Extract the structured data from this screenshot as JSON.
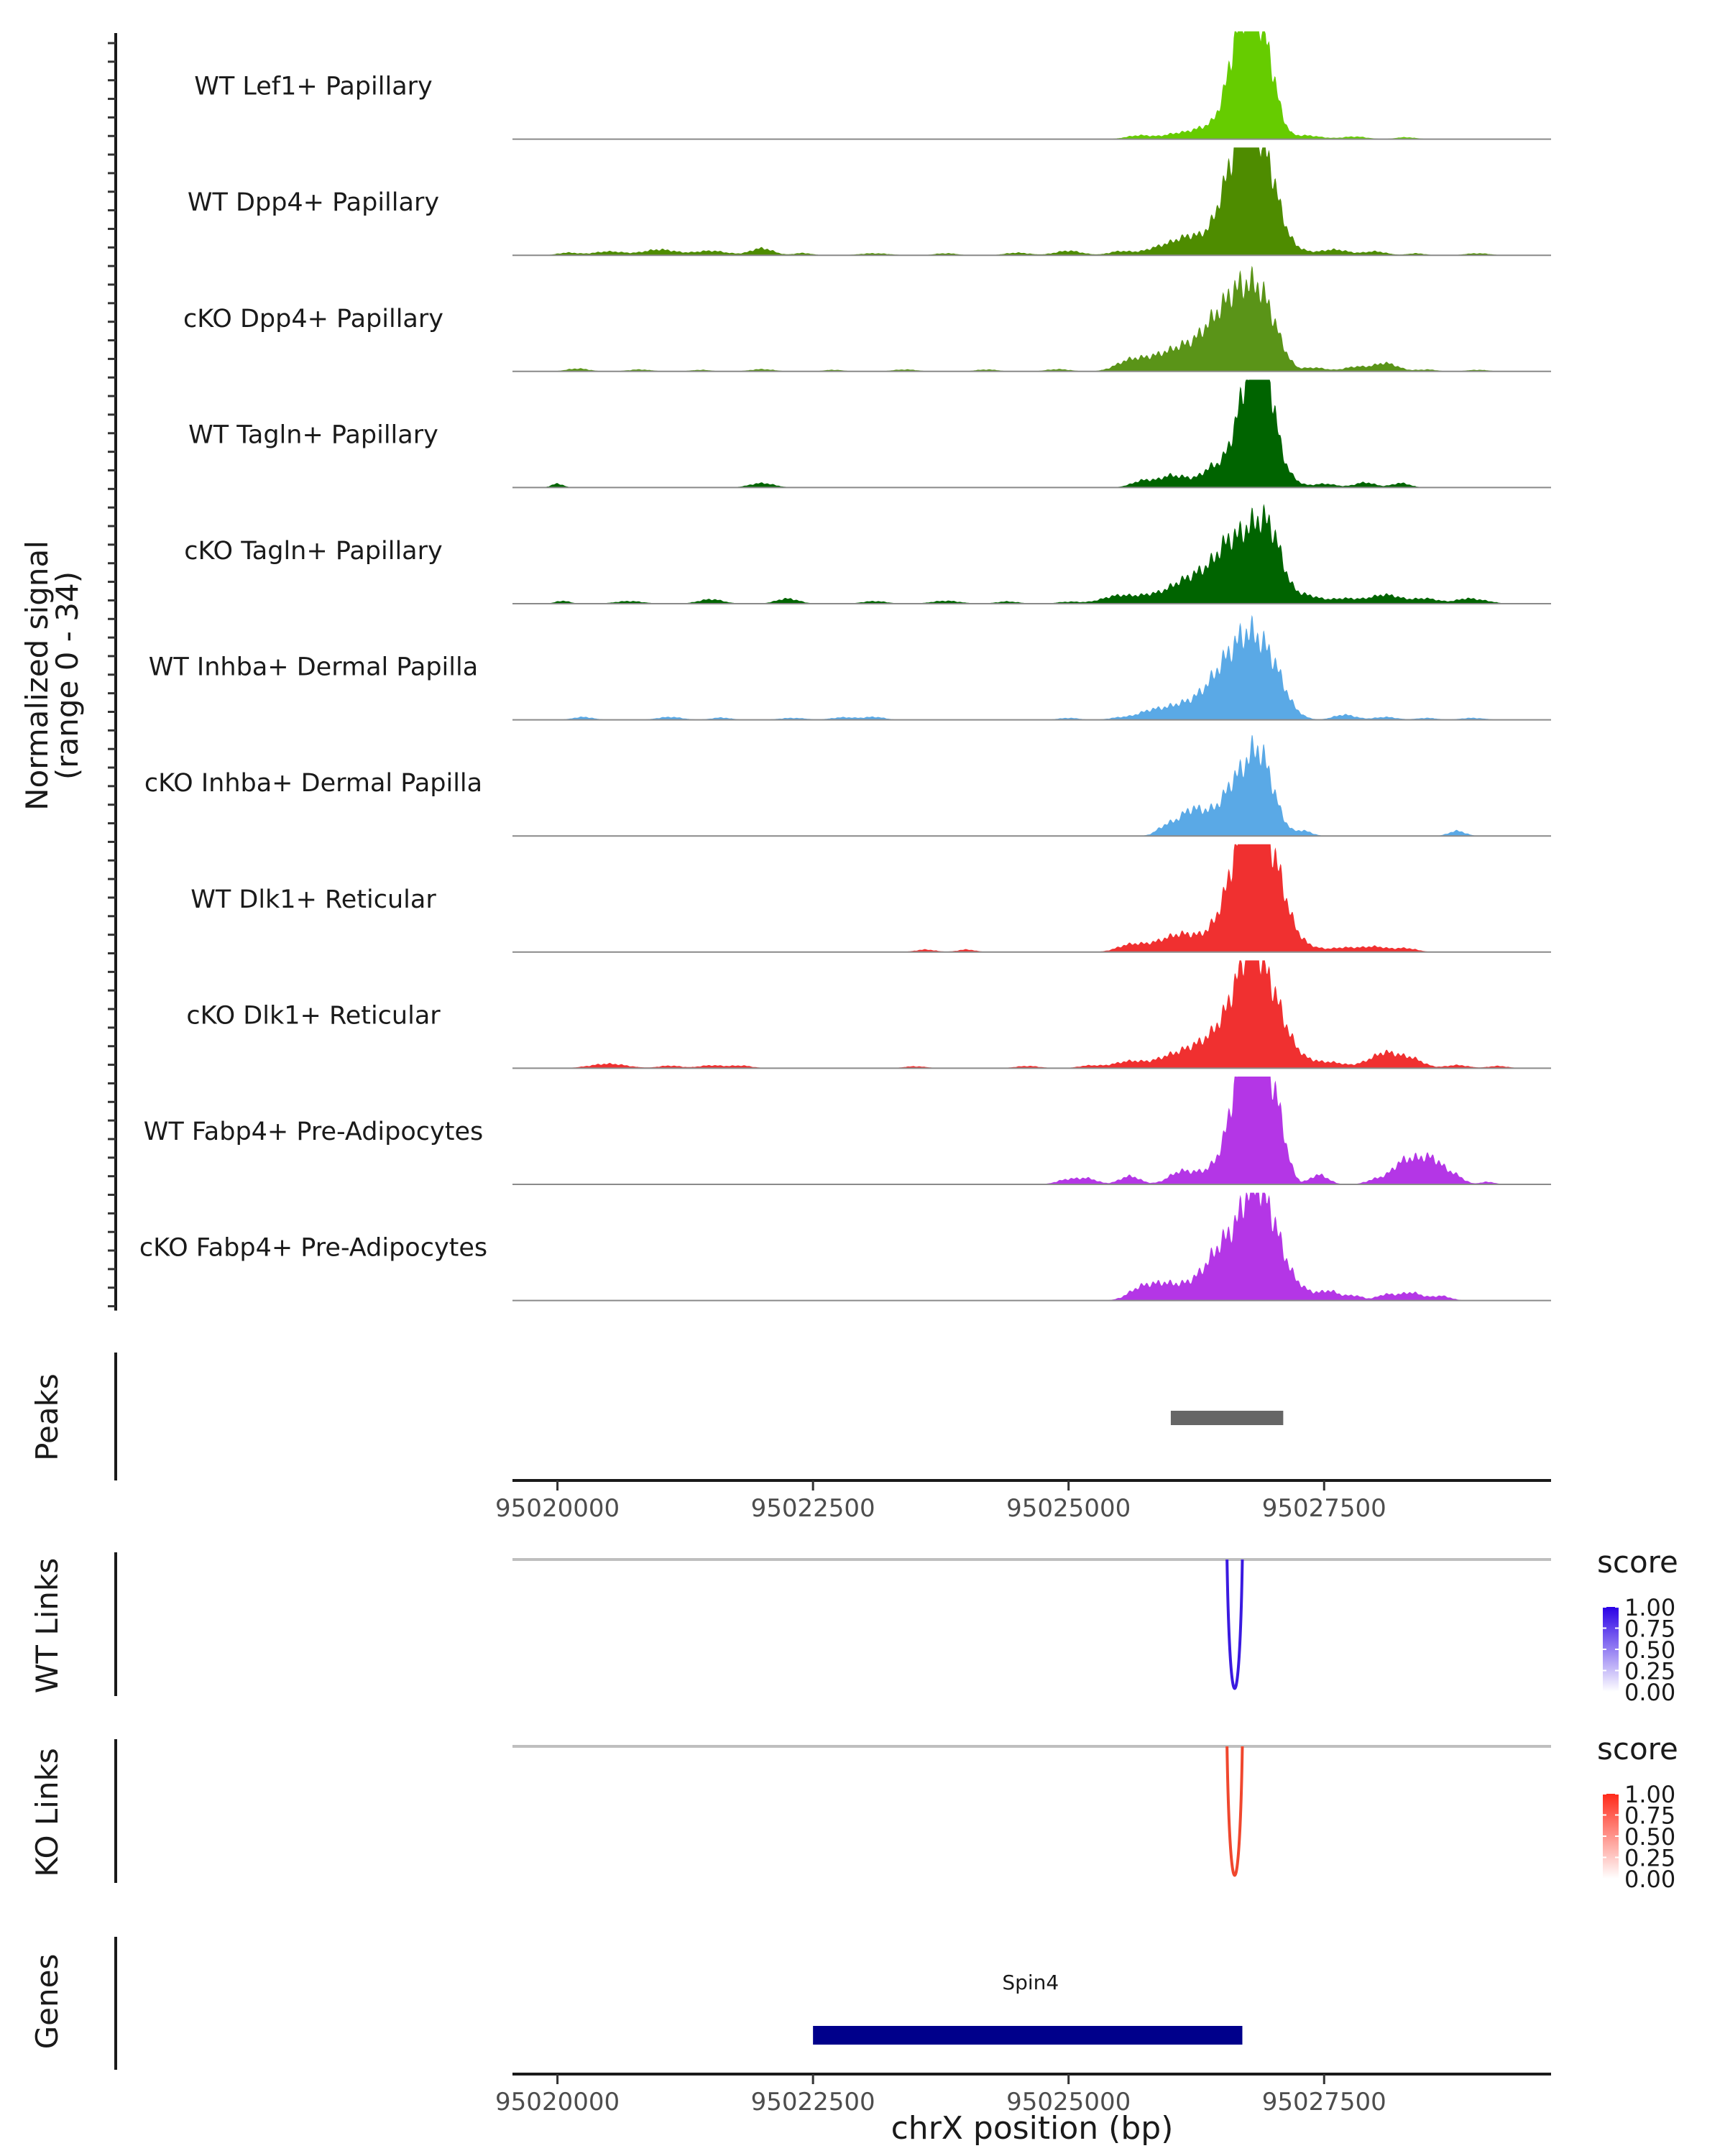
{
  "chart_data": {
    "type": "area",
    "xlabel": "chrX position (bp)",
    "xlim": [
      95019560,
      95029720
    ],
    "xticks": [
      95020000,
      95022500,
      95025000,
      95027500
    ],
    "coverage": {
      "ylabel_line1": "Normalized signal",
      "ylabel_line2": "(range 0 - 34)",
      "ylim": [
        0,
        34
      ],
      "tracks": [
        {
          "name": "WT Lef1+ Papillary",
          "color": "#66cc00",
          "peaks": [
            [
              95025700,
              1.2,
              130
            ],
            [
              95026050,
              1.6,
              120
            ],
            [
              95026300,
              2.8,
              120
            ],
            [
              95026500,
              4.4,
              110
            ],
            [
              95026650,
              18,
              100
            ],
            [
              95026800,
              30,
              130
            ],
            [
              95026950,
              14,
              100
            ],
            [
              95027300,
              1.2,
              160
            ],
            [
              95027800,
              0.8,
              120
            ],
            [
              95028300,
              0.6,
              100
            ]
          ]
        },
        {
          "name": "WT Dpp4+ Papillary",
          "color": "#4e8c00",
          "peaks": [
            [
              95020100,
              0.8,
              100
            ],
            [
              95020500,
              1.2,
              150
            ],
            [
              95021000,
              1.8,
              160
            ],
            [
              95021500,
              1.4,
              160
            ],
            [
              95022000,
              2.2,
              110
            ],
            [
              95022400,
              0.7,
              90
            ],
            [
              95023100,
              0.6,
              150
            ],
            [
              95023800,
              0.6,
              110
            ],
            [
              95024500,
              0.8,
              120
            ],
            [
              95025000,
              1.4,
              130
            ],
            [
              95025500,
              1.2,
              110
            ],
            [
              95025900,
              2.4,
              160
            ],
            [
              95026200,
              5.5,
              150
            ],
            [
              95026500,
              9,
              120
            ],
            [
              95026650,
              16,
              120
            ],
            [
              95026800,
              30,
              140
            ],
            [
              95026980,
              14,
              110
            ],
            [
              95027200,
              2.2,
              120
            ],
            [
              95027600,
              1.8,
              140
            ],
            [
              95028000,
              1.2,
              110
            ],
            [
              95028400,
              0.6,
              90
            ],
            [
              95029000,
              0.6,
              120
            ]
          ]
        },
        {
          "name": "cKO Dpp4+ Papillary",
          "color": "#5a9418",
          "peaks": [
            [
              95020200,
              0.9,
              110
            ],
            [
              95020800,
              0.6,
              120
            ],
            [
              95021400,
              0.5,
              100
            ],
            [
              95022000,
              0.7,
              120
            ],
            [
              95022700,
              0.5,
              100
            ],
            [
              95023400,
              0.6,
              120
            ],
            [
              95024200,
              0.6,
              110
            ],
            [
              95024900,
              0.7,
              120
            ],
            [
              95025600,
              3.2,
              140
            ],
            [
              95025900,
              4.2,
              160
            ],
            [
              95026150,
              6,
              140
            ],
            [
              95026400,
              11,
              130
            ],
            [
              95026650,
              22,
              140
            ],
            [
              95026880,
              19,
              120
            ],
            [
              95027050,
              5.5,
              100
            ],
            [
              95027400,
              1.2,
              120
            ],
            [
              95027800,
              1.4,
              110
            ],
            [
              95028100,
              2.6,
              120
            ],
            [
              95028500,
              0.6,
              100
            ],
            [
              95029000,
              0.5,
              110
            ]
          ]
        },
        {
          "name": "WT Tagln+ Papillary",
          "color": "#006400",
          "peaks": [
            [
              95020000,
              1.2,
              60
            ],
            [
              95022000,
              1.4,
              120
            ],
            [
              95025750,
              2.4,
              120
            ],
            [
              95026000,
              3.4,
              90
            ],
            [
              95026150,
              1.8,
              70
            ],
            [
              95026400,
              6,
              120
            ],
            [
              95026650,
              10,
              110
            ],
            [
              95026820,
              34,
              120
            ],
            [
              95026960,
              18,
              90
            ],
            [
              95027150,
              3.5,
              90
            ],
            [
              95027500,
              1.2,
              120
            ],
            [
              95027900,
              1.6,
              100
            ],
            [
              95028250,
              1.4,
              90
            ]
          ]
        },
        {
          "name": "cKO Tagln+ Papillary",
          "color": "#006400",
          "peaks": [
            [
              95020050,
              0.9,
              70
            ],
            [
              95020700,
              0.8,
              140
            ],
            [
              95021500,
              1.4,
              120
            ],
            [
              95022250,
              1.6,
              110
            ],
            [
              95023100,
              0.8,
              120
            ],
            [
              95023800,
              0.9,
              140
            ],
            [
              95024400,
              0.7,
              110
            ],
            [
              95025000,
              0.6,
              110
            ],
            [
              95025500,
              2.6,
              170
            ],
            [
              95025800,
              1.8,
              120
            ],
            [
              95026100,
              6,
              150
            ],
            [
              95026350,
              8,
              130
            ],
            [
              95026550,
              12,
              110
            ],
            [
              95026800,
              22,
              150
            ],
            [
              95027000,
              14,
              110
            ],
            [
              95027300,
              2.8,
              140
            ],
            [
              95027700,
              1.6,
              140
            ],
            [
              95028100,
              2.8,
              150
            ],
            [
              95028500,
              1.6,
              130
            ],
            [
              95028900,
              1.6,
              110
            ],
            [
              95029100,
              0.6,
              90
            ]
          ]
        },
        {
          "name": "WT Inhba+ Dermal Papilla",
          "color": "#5aa9e6",
          "peaks": [
            [
              95020250,
              0.9,
              100
            ],
            [
              95021100,
              0.9,
              120
            ],
            [
              95021600,
              0.7,
              100
            ],
            [
              95022300,
              0.6,
              130
            ],
            [
              95022800,
              0.8,
              120
            ],
            [
              95023100,
              0.9,
              100
            ],
            [
              95025000,
              0.6,
              100
            ],
            [
              95025500,
              0.7,
              110
            ],
            [
              95025800,
              2.6,
              130
            ],
            [
              95026100,
              4.5,
              150
            ],
            [
              95026350,
              6.5,
              120
            ],
            [
              95026520,
              11,
              110
            ],
            [
              95026700,
              16,
              120
            ],
            [
              95026880,
              18,
              140
            ],
            [
              95027050,
              7,
              110
            ],
            [
              95027250,
              1,
              90
            ],
            [
              95027700,
              1.6,
              110
            ],
            [
              95028100,
              0.9,
              110
            ],
            [
              95028500,
              0.6,
              100
            ],
            [
              95028950,
              0.6,
              120
            ]
          ]
        },
        {
          "name": "cKO Inhba+ Dermal Papilla",
          "color": "#5aa9e6",
          "peaks": [
            [
              95025950,
              2.8,
              90
            ],
            [
              95026200,
              8,
              120
            ],
            [
              95026450,
              7,
              110
            ],
            [
              95026600,
              8,
              80
            ],
            [
              95026800,
              22,
              130
            ],
            [
              95026950,
              10,
              120
            ],
            [
              95027300,
              1.6,
              80
            ],
            [
              95028800,
              1.6,
              80
            ]
          ]
        },
        {
          "name": "WT Dlk1+ Reticular",
          "color": "#f03030",
          "peaks": [
            [
              95023600,
              0.8,
              100
            ],
            [
              95024000,
              0.8,
              90
            ],
            [
              95025600,
              2.2,
              130
            ],
            [
              95025900,
              2.6,
              150
            ],
            [
              95026100,
              3.4,
              130
            ],
            [
              95026300,
              3.1,
              150
            ],
            [
              95026500,
              5,
              130
            ],
            [
              95026700,
              20,
              140
            ],
            [
              95026850,
              30,
              160
            ],
            [
              95027050,
              12,
              120
            ],
            [
              95027300,
              2.2,
              130
            ],
            [
              95027700,
              1.4,
              140
            ],
            [
              95028000,
              1.6,
              120
            ],
            [
              95028300,
              1.2,
              110
            ]
          ]
        },
        {
          "name": "cKO Dlk1+ Reticular",
          "color": "#f03030",
          "peaks": [
            [
              95020500,
              1.4,
              180
            ],
            [
              95021100,
              0.8,
              110
            ],
            [
              95021500,
              0.9,
              120
            ],
            [
              95021800,
              0.8,
              110
            ],
            [
              95023500,
              0.6,
              110
            ],
            [
              95024600,
              0.7,
              120
            ],
            [
              95025200,
              0.8,
              110
            ],
            [
              95025600,
              2.2,
              160
            ],
            [
              95026000,
              3.4,
              150
            ],
            [
              95026250,
              5,
              140
            ],
            [
              95026500,
              10,
              140
            ],
            [
              95026720,
              16,
              130
            ],
            [
              95026850,
              24,
              150
            ],
            [
              95027050,
              10,
              130
            ],
            [
              95027300,
              2.5,
              150
            ],
            [
              95027600,
              1.5,
              120
            ],
            [
              95027900,
              1.1,
              110
            ],
            [
              95028100,
              4.5,
              120
            ],
            [
              95028350,
              3,
              120
            ],
            [
              95028800,
              1,
              110
            ],
            [
              95029200,
              0.7,
              100
            ]
          ]
        },
        {
          "name": "WT Fabp4+ Pre-Adipocytes",
          "color": "#b436e6",
          "peaks": [
            [
              95025000,
              1.6,
              110
            ],
            [
              95025200,
              1.6,
              90
            ],
            [
              95025600,
              2.6,
              100
            ],
            [
              95026100,
              4,
              120
            ],
            [
              95026350,
              3.2,
              110
            ],
            [
              95026550,
              6,
              110
            ],
            [
              95026720,
              34,
              120
            ],
            [
              95026900,
              27,
              120
            ],
            [
              95027050,
              13,
              90
            ],
            [
              95027450,
              3,
              90
            ],
            [
              95028000,
              1.5,
              90
            ],
            [
              95028250,
              5,
              110
            ],
            [
              95028450,
              6,
              140
            ],
            [
              95028600,
              4.2,
              110
            ],
            [
              95028800,
              2,
              80
            ],
            [
              95029100,
              0.8,
              70
            ]
          ]
        },
        {
          "name": "cKO Fabp4+ Pre-Adipocytes",
          "color": "#b436e6",
          "peaks": [
            [
              95025700,
              3.5,
              120
            ],
            [
              95025950,
              5,
              140
            ],
            [
              95026200,
              3.4,
              110
            ],
            [
              95026400,
              9,
              120
            ],
            [
              95026550,
              11,
              110
            ],
            [
              95026750,
              17,
              120
            ],
            [
              95026880,
              22,
              140
            ],
            [
              95027050,
              10,
              130
            ],
            [
              95027300,
              2.5,
              100
            ],
            [
              95027550,
              3,
              100
            ],
            [
              95027800,
              1.5,
              80
            ],
            [
              95028100,
              1.8,
              90
            ],
            [
              95028350,
              2.5,
              110
            ],
            [
              95028650,
              1.4,
              90
            ]
          ]
        }
      ]
    },
    "peaks_track": {
      "label": "Peaks",
      "regions": [
        [
          95026000,
          95027100
        ]
      ],
      "color": "#666666"
    },
    "link_tracks": [
      {
        "label": "WT Links",
        "color": "#3a1ae0",
        "score": 1.0,
        "start": 95026550,
        "end": 95026700
      },
      {
        "label": "KO Links",
        "color": "#f0472e",
        "score": 1.0,
        "start": 95026550,
        "end": 95026700
      }
    ],
    "legends": [
      {
        "title": "score",
        "low_color": "#ffffff",
        "high_color": "#2a00e6",
        "ticks": [
          "1.00",
          "0.75",
          "0.50",
          "0.25",
          "0.00"
        ]
      },
      {
        "title": "score",
        "low_color": "#ffffff",
        "high_color": "#ff2a1a",
        "ticks": [
          "1.00",
          "0.75",
          "0.50",
          "0.25",
          "0.00"
        ]
      }
    ],
    "genes_track": {
      "label": "Genes",
      "genes": [
        {
          "name": "Spin4",
          "start": 95022500,
          "end": 95026700,
          "color": "#00008b"
        }
      ]
    }
  }
}
